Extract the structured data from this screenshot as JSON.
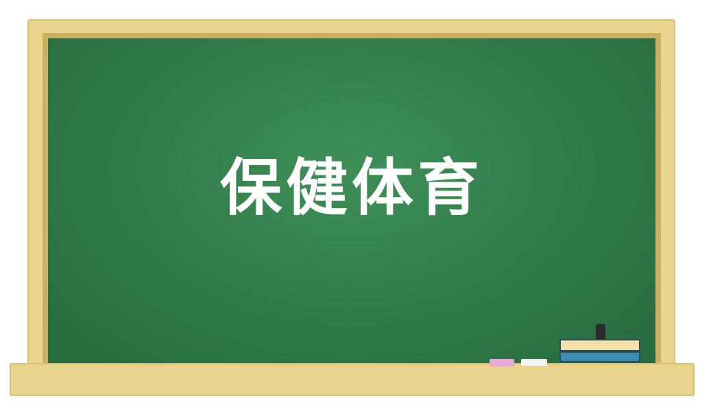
{
  "board": {
    "title": "保健体育"
  },
  "colors": {
    "board_green": "#2f7a48",
    "frame_wood": "#e8d48c",
    "chalk_pink": "#e6a9d6",
    "chalk_white": "#f4f4f4",
    "eraser_blue": "#3c8fb0"
  },
  "icons": {
    "eraser": "blackboard-eraser-icon",
    "chalk": "chalk-icon"
  }
}
